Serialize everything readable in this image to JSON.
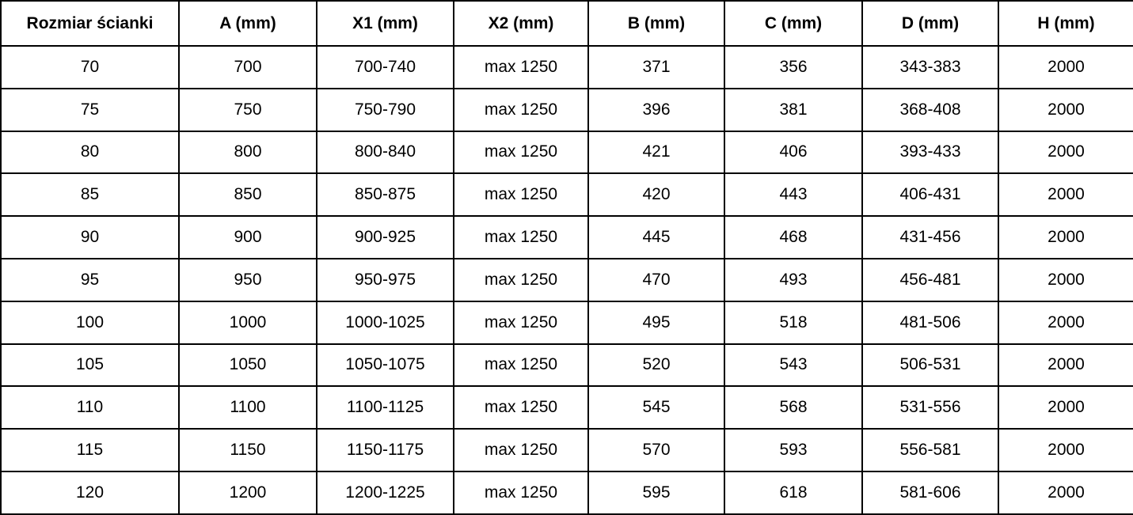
{
  "table": {
    "columns": [
      "Rozmiar ścianki",
      "A (mm)",
      "X1 (mm)",
      "X2 (mm)",
      "B (mm)",
      "C (mm)",
      "D (mm)",
      "H (mm)"
    ],
    "rows": [
      [
        "70",
        "700",
        "700-740",
        "max 1250",
        "371",
        "356",
        "343-383",
        "2000"
      ],
      [
        "75",
        "750",
        "750-790",
        "max 1250",
        "396",
        "381",
        "368-408",
        "2000"
      ],
      [
        "80",
        "800",
        "800-840",
        "max 1250",
        "421",
        "406",
        "393-433",
        "2000"
      ],
      [
        "85",
        "850",
        "850-875",
        "max 1250",
        "420",
        "443",
        "406-431",
        "2000"
      ],
      [
        "90",
        "900",
        "900-925",
        "max 1250",
        "445",
        "468",
        "431-456",
        "2000"
      ],
      [
        "95",
        "950",
        "950-975",
        "max 1250",
        "470",
        "493",
        "456-481",
        "2000"
      ],
      [
        "100",
        "1000",
        "1000-1025",
        "max 1250",
        "495",
        "518",
        "481-506",
        "2000"
      ],
      [
        "105",
        "1050",
        "1050-1075",
        "max 1250",
        "520",
        "543",
        "506-531",
        "2000"
      ],
      [
        "110",
        "1100",
        "1100-1125",
        "max 1250",
        "545",
        "568",
        "531-556",
        "2000"
      ],
      [
        "115",
        "1150",
        "1150-1175",
        "max 1250",
        "570",
        "593",
        "556-581",
        "2000"
      ],
      [
        "120",
        "1200",
        "1200-1225",
        "max 1250",
        "595",
        "618",
        "581-606",
        "2000"
      ]
    ],
    "colors": {
      "border": "#000000",
      "background": "#ffffff",
      "text": "#000000"
    }
  },
  "chart_data": {
    "type": "table",
    "title": "",
    "columns": [
      "Rozmiar ścianki",
      "A (mm)",
      "X1 (mm)",
      "X2 (mm)",
      "B (mm)",
      "C (mm)",
      "D (mm)",
      "H (mm)"
    ],
    "rows": [
      [
        "70",
        "700",
        "700-740",
        "max 1250",
        "371",
        "356",
        "343-383",
        "2000"
      ],
      [
        "75",
        "750",
        "750-790",
        "max 1250",
        "396",
        "381",
        "368-408",
        "2000"
      ],
      [
        "80",
        "800",
        "800-840",
        "max 1250",
        "421",
        "406",
        "393-433",
        "2000"
      ],
      [
        "85",
        "850",
        "850-875",
        "max 1250",
        "420",
        "443",
        "406-431",
        "2000"
      ],
      [
        "90",
        "900",
        "900-925",
        "max 1250",
        "445",
        "468",
        "431-456",
        "2000"
      ],
      [
        "95",
        "950",
        "950-975",
        "max 1250",
        "470",
        "493",
        "456-481",
        "2000"
      ],
      [
        "100",
        "1000",
        "1000-1025",
        "max 1250",
        "495",
        "518",
        "481-506",
        "2000"
      ],
      [
        "105",
        "1050",
        "1050-1075",
        "max 1250",
        "520",
        "543",
        "506-531",
        "2000"
      ],
      [
        "110",
        "1100",
        "1100-1125",
        "max 1250",
        "545",
        "568",
        "531-556",
        "2000"
      ],
      [
        "115",
        "1150",
        "1150-1175",
        "max 1250",
        "570",
        "593",
        "556-581",
        "2000"
      ],
      [
        "120",
        "1200",
        "1200-1225",
        "max 1250",
        "595",
        "618",
        "581-606",
        "2000"
      ]
    ]
  }
}
